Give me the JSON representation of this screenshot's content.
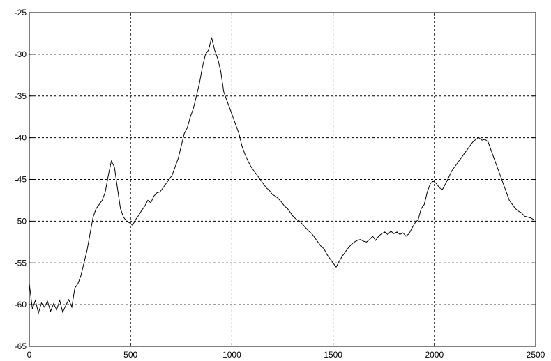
{
  "chart_data": {
    "type": "line",
    "title": "",
    "xlabel": "",
    "ylabel": "",
    "xlim": [
      0,
      2500
    ],
    "ylim": [
      -65,
      -25
    ],
    "grid": true,
    "x_ticks": [
      {
        "value": 0,
        "label": "0"
      },
      {
        "value": 500,
        "label": "500"
      },
      {
        "value": 1000,
        "label": "1000"
      },
      {
        "value": 1500,
        "label": "1500"
      },
      {
        "value": 2000,
        "label": "2000"
      },
      {
        "value": 2500,
        "label": "2500"
      }
    ],
    "y_ticks": [
      {
        "value": -25,
        "label": "-25"
      },
      {
        "value": -30,
        "label": "-30"
      },
      {
        "value": -35,
        "label": "-35"
      },
      {
        "value": -40,
        "label": "-40"
      },
      {
        "value": -45,
        "label": "-45"
      },
      {
        "value": -50,
        "label": "-50"
      },
      {
        "value": -55,
        "label": "-55"
      },
      {
        "value": -60,
        "label": "-60"
      },
      {
        "value": -65,
        "label": "-65"
      }
    ],
    "series": [
      {
        "color": "#000000",
        "x": [
          0,
          15,
          30,
          45,
          60,
          75,
          90,
          105,
          120,
          135,
          150,
          165,
          180,
          195,
          210,
          225,
          240,
          255,
          270,
          285,
          300,
          315,
          330,
          345,
          360,
          375,
          390,
          405,
          420,
          435,
          450,
          465,
          480,
          495,
          510,
          525,
          540,
          555,
          570,
          585,
          600,
          615,
          630,
          645,
          660,
          675,
          690,
          705,
          720,
          735,
          750,
          765,
          780,
          795,
          810,
          825,
          840,
          855,
          870,
          885,
          900,
          915,
          930,
          945,
          960,
          975,
          990,
          1005,
          1020,
          1035,
          1050,
          1065,
          1080,
          1095,
          1110,
          1125,
          1140,
          1155,
          1170,
          1185,
          1200,
          1215,
          1230,
          1245,
          1260,
          1275,
          1290,
          1305,
          1320,
          1335,
          1350,
          1365,
          1380,
          1395,
          1410,
          1425,
          1440,
          1455,
          1470,
          1485,
          1500,
          1515,
          1530,
          1545,
          1560,
          1575,
          1590,
          1605,
          1620,
          1635,
          1650,
          1665,
          1680,
          1695,
          1710,
          1725,
          1740,
          1755,
          1770,
          1785,
          1800,
          1815,
          1830,
          1845,
          1860,
          1875,
          1890,
          1905,
          1920,
          1935,
          1950,
          1965,
          1980,
          1995,
          2010,
          2025,
          2040,
          2055,
          2070,
          2085,
          2100,
          2115,
          2130,
          2145,
          2160,
          2175,
          2190,
          2205,
          2220,
          2235,
          2250,
          2265,
          2280,
          2295,
          2310,
          2325,
          2340,
          2355,
          2370,
          2385,
          2400,
          2415,
          2430,
          2445,
          2460,
          2475,
          2490
        ],
        "values": [
          -57.5,
          -60.5,
          -59.5,
          -61,
          -59.8,
          -60.3,
          -59.6,
          -60.8,
          -59.9,
          -60.6,
          -59.5,
          -60.9,
          -60.1,
          -59.4,
          -60.3,
          -58,
          -57.5,
          -56.5,
          -55,
          -53.5,
          -51.5,
          -49.5,
          -48.5,
          -48,
          -47.5,
          -46.5,
          -44.5,
          -42.8,
          -43.5,
          -46,
          -48.5,
          -49.5,
          -50,
          -50.2,
          -50.5,
          -49.8,
          -49.3,
          -48.7,
          -48.2,
          -47.5,
          -47.8,
          -47,
          -46.6,
          -46.5,
          -46,
          -45.5,
          -45,
          -44.5,
          -43.5,
          -42.5,
          -41,
          -39.5,
          -38.8,
          -37.5,
          -36.5,
          -35,
          -33.5,
          -31.5,
          -30,
          -29.5,
          -28,
          -29.5,
          -30.5,
          -32,
          -34.5,
          -35.5,
          -36.5,
          -37.5,
          -38.5,
          -39.5,
          -41,
          -42,
          -42.8,
          -43.5,
          -44,
          -44.5,
          -45,
          -45.5,
          -46,
          -46.3,
          -46.8,
          -47,
          -47.3,
          -47.7,
          -48.2,
          -48.5,
          -49,
          -49.5,
          -49.8,
          -50,
          -50.4,
          -50.8,
          -51.2,
          -51.5,
          -52,
          -52.5,
          -53,
          -53.3,
          -54,
          -54.5,
          -55,
          -55.5,
          -54.8,
          -54.2,
          -53.7,
          -53.2,
          -52.8,
          -52.5,
          -52.3,
          -52.2,
          -52.4,
          -52.5,
          -52.2,
          -51.8,
          -52.3,
          -51.8,
          -51.5,
          -51.3,
          -51.6,
          -51.2,
          -51.5,
          -51.3,
          -51.6,
          -51.4,
          -51.8,
          -51.5,
          -50.8,
          -50.2,
          -49.8,
          -48.5,
          -48,
          -46.5,
          -45.5,
          -45.2,
          -45.5,
          -46,
          -46.2,
          -45.5,
          -44.8,
          -44,
          -43.5,
          -43,
          -42.5,
          -42,
          -41.5,
          -41,
          -40.5,
          -40.2,
          -40,
          -40.3,
          -40.2,
          -40.5,
          -41.5,
          -42.5,
          -43.5,
          -44.5,
          -45.5,
          -46.5,
          -47.5,
          -48,
          -48.5,
          -48.8,
          -49,
          -49.4,
          -49.5,
          -49.6,
          -49.8
        ]
      }
    ]
  }
}
